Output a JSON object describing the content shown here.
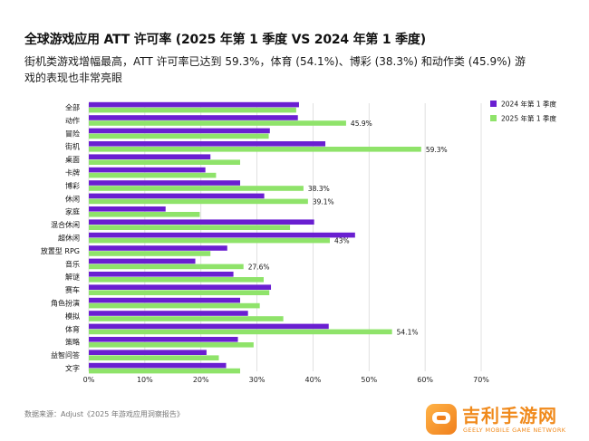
{
  "header": {
    "title": "全球游戏应用 ATT 许可率 (2025 年第 1 季度 VS 2024 年第 1 季度)",
    "subtitle": "街机类游戏增幅最高，ATT 许可率已达到 59.3%，体育 (54.1%)、博彩 (38.3%) 和动作类 (45.9%) 游戏的表现也非常亮眼"
  },
  "footer": {
    "source": "数据来源：Adjust《2025 年游戏应用洞察报告》"
  },
  "watermark": {
    "name_cn": "吉利手游网",
    "name_en": "GEELY MOBILE GAME NETWORK"
  },
  "colors": {
    "series_2024": "#6a1fd1",
    "series_2025": "#8fe36a"
  },
  "chart_data": {
    "type": "bar",
    "orientation": "horizontal",
    "categories": [
      "全部",
      "动作",
      "冒险",
      "街机",
      "桌面",
      "卡牌",
      "博彩",
      "休闲",
      "家庭",
      "混合休闲",
      "超休闲",
      "放置型 RPG",
      "音乐",
      "解谜",
      "赛车",
      "角色扮演",
      "模拟",
      "体育",
      "策略",
      "益智问答",
      "文字"
    ],
    "series": [
      {
        "name": "2024 年第 1 季度",
        "values": [
          37.5,
          37.3,
          32.3,
          42.2,
          21.7,
          20.8,
          27.0,
          31.3,
          13.7,
          40.2,
          47.5,
          24.7,
          19.0,
          25.8,
          32.5,
          27.0,
          28.4,
          42.8,
          26.6,
          21.0,
          24.5
        ]
      },
      {
        "name": "2025 年第 1 季度",
        "values": [
          37.0,
          45.9,
          32.1,
          59.3,
          27.0,
          22.7,
          38.3,
          39.1,
          19.8,
          35.9,
          43.0,
          21.7,
          27.6,
          31.2,
          32.2,
          30.5,
          34.7,
          54.1,
          29.4,
          23.2,
          27.0
        ]
      }
    ],
    "data_labels": [
      {
        "category": "动作",
        "series": 1,
        "text": "45.9%"
      },
      {
        "category": "街机",
        "series": 1,
        "text": "59.3%"
      },
      {
        "category": "博彩",
        "series": 1,
        "text": "38.3%"
      },
      {
        "category": "休闲",
        "series": 1,
        "text": "39.1%"
      },
      {
        "category": "超休闲",
        "series": 1,
        "text": "43%"
      },
      {
        "category": "音乐",
        "series": 1,
        "text": "27.6%"
      },
      {
        "category": "体育",
        "series": 1,
        "text": "54.1%"
      }
    ],
    "xlim": [
      0,
      70
    ],
    "xticks": [
      0,
      10,
      20,
      30,
      40,
      50,
      60,
      70
    ],
    "tick_suffix": "%",
    "grid": true,
    "legend_position": "top-right"
  }
}
